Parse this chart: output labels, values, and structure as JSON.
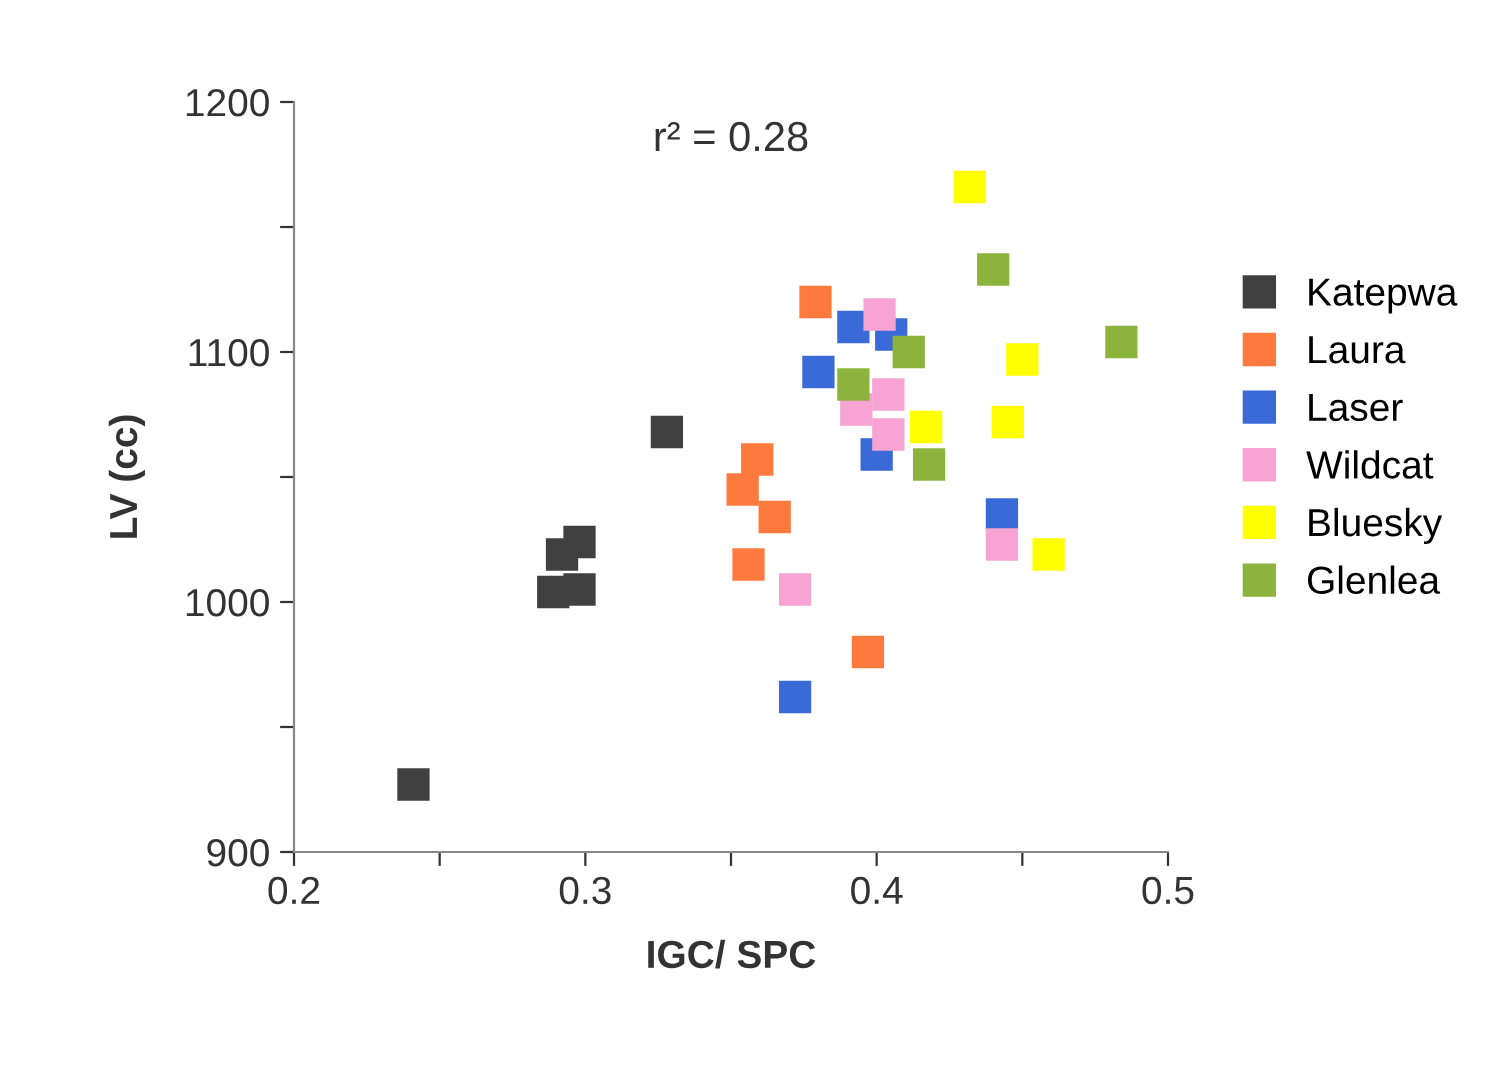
{
  "chart_data": {
    "type": "scatter",
    "xlabel": "IGC/ SPC",
    "ylabel": "LV (cc)",
    "annotations": [
      "r² = 0.28"
    ],
    "xlim": [
      0.2,
      0.5
    ],
    "ylim": [
      900,
      1200
    ],
    "xticks": [
      0.2,
      {
        "value": 0.25,
        "label": null
      },
      0.3,
      {
        "value": 0.35,
        "label": null
      },
      0.4,
      {
        "value": 0.45,
        "label": null
      },
      0.5
    ],
    "yticks": [
      900,
      {
        "value": 950,
        "label": null
      },
      1000,
      {
        "value": 1050,
        "label": null
      },
      1100,
      {
        "value": 1150,
        "label": null
      },
      1200
    ],
    "grid": false,
    "legend": "right",
    "marker": "square",
    "series": [
      {
        "name": "Katepwa",
        "color": "#404040",
        "x": [
          0.241,
          0.328,
          0.298,
          0.292,
          0.289,
          0.298
        ],
        "values": [
          927,
          1068,
          1024,
          1019,
          1004,
          1005
        ]
      },
      {
        "name": "Laura",
        "color": "#ff7a3c",
        "x": [
          0.379,
          0.359,
          0.354,
          0.365,
          0.356,
          0.397
        ],
        "values": [
          1120,
          1057,
          1045,
          1034,
          1015,
          980
        ]
      },
      {
        "name": "Laser",
        "color": "#3a6ad8",
        "x": [
          0.38,
          0.392,
          0.405,
          0.4,
          0.372,
          0.443
        ],
        "values": [
          1092,
          1110,
          1107,
          1059,
          962,
          1035
        ]
      },
      {
        "name": "Wildcat",
        "color": "#f7a3d3",
        "x": [
          0.401,
          0.404,
          0.393,
          0.404,
          0.372,
          0.443
        ],
        "values": [
          1115,
          1083,
          1077,
          1067,
          1005,
          1023
        ]
      },
      {
        "name": "Bluesky",
        "color": "#ffff00",
        "x": [
          0.432,
          0.417,
          0.445,
          0.45,
          0.459
        ],
        "values": [
          1166,
          1070,
          1072,
          1097,
          1019
        ]
      },
      {
        "name": "Glenlea",
        "color": "#8cb43c",
        "x": [
          0.44,
          0.484,
          0.411,
          0.392,
          0.418
        ],
        "values": [
          1133,
          1104,
          1100,
          1087,
          1055
        ]
      }
    ]
  }
}
